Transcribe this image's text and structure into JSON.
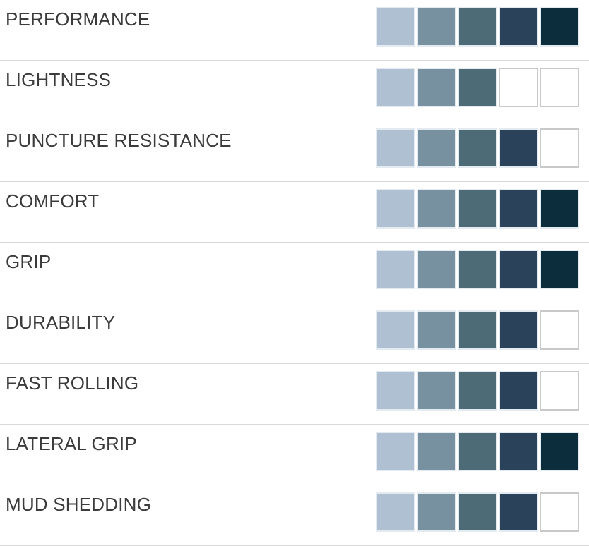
{
  "page": {
    "background": "#ffffff",
    "divider_color": "#d9d9d9",
    "label_color": "#3b3b3b"
  },
  "palette": {
    "level_colors": [
      "#aec0d2",
      "#7891a0",
      "#4d6a77",
      "#2a425a",
      "#0b2d3c"
    ],
    "filled_border": "#e3ebf1",
    "empty_fill": "#ffffff",
    "empty_border": "#c9c9c9"
  },
  "ratings": {
    "max": 5,
    "rows": [
      {
        "label": "PERFORMANCE",
        "value": 5
      },
      {
        "label": "LIGHTNESS",
        "value": 3
      },
      {
        "label": "PUNCTURE RESISTANCE",
        "value": 4
      },
      {
        "label": "COMFORT",
        "value": 5
      },
      {
        "label": "GRIP",
        "value": 5
      },
      {
        "label": "DURABILITY",
        "value": 4
      },
      {
        "label": "FAST ROLLING",
        "value": 4
      },
      {
        "label": "LATERAL GRIP",
        "value": 5
      },
      {
        "label": "MUD SHEDDING",
        "value": 4
      }
    ]
  },
  "chart_data": {
    "type": "bar",
    "categories": [
      "PERFORMANCE",
      "LIGHTNESS",
      "PUNCTURE RESISTANCE",
      "COMFORT",
      "GRIP",
      "DURABILITY",
      "FAST ROLLING",
      "LATERAL GRIP",
      "MUD SHEDDING"
    ],
    "values": [
      5,
      3,
      4,
      5,
      5,
      4,
      4,
      5,
      4
    ],
    "title": "",
    "xlabel": "",
    "ylabel": "",
    "ylim": [
      0,
      5
    ],
    "legend": "none",
    "grid": "off",
    "style_note": "each value rendered as N filled squares (light-to-dark gradient) plus empty white squares up to 5"
  }
}
